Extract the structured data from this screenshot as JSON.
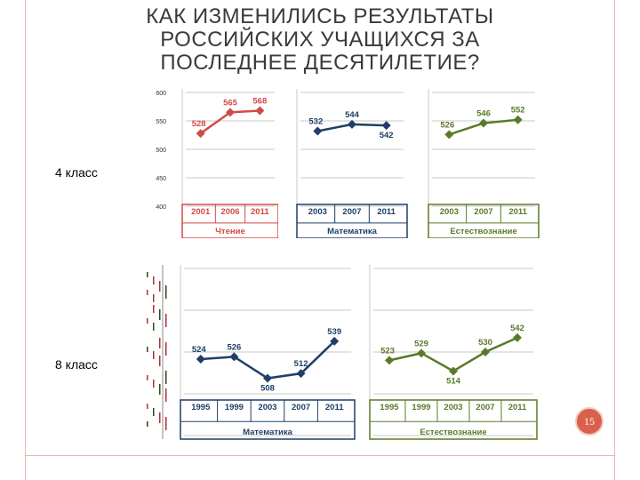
{
  "title": "КАК ИЗМЕНИЛИСЬ РЕЗУЛЬТАТЫ\nРОССИЙСКИХ УЧАЩИХСЯ ЗА\nПОСЛЕДНЕЕ ДЕСЯТИЛЕТИЕ?",
  "row_labels": [
    "4 класс",
    "8 класс"
  ],
  "slide_number": "15",
  "colors": {
    "reading": "#d24a45",
    "math": "#1f3f66",
    "science": "#5a7a2a",
    "frame": "#e6b8b0",
    "badge": "#d9604a"
  },
  "chart_data": [
    {
      "type": "line",
      "group": "4 класс",
      "subject": "Чтение",
      "x": [
        "2001",
        "2006",
        "2011"
      ],
      "values": [
        528,
        565,
        568
      ],
      "y_ticks": [
        "600",
        "550",
        "500",
        "450",
        "400"
      ],
      "ylim": [
        400,
        600
      ],
      "color": "#d24a45"
    },
    {
      "type": "line",
      "group": "4 класс",
      "subject": "Математика",
      "x": [
        "2003",
        "2007",
        "2011"
      ],
      "values": [
        532,
        544,
        542
      ],
      "ylim": [
        400,
        600
      ],
      "color": "#1f3f66"
    },
    {
      "type": "line",
      "group": "4 класс",
      "subject": "Естествознание",
      "x": [
        "2003",
        "2007",
        "2011"
      ],
      "values": [
        526,
        546,
        552
      ],
      "ylim": [
        400,
        600
      ],
      "color": "#5a7a2a"
    },
    {
      "type": "line",
      "group": "8 класс",
      "subject": "Математика",
      "x": [
        "1995",
        "1999",
        "2003",
        "2007",
        "2011"
      ],
      "values": [
        524,
        526,
        508,
        512,
        539
      ],
      "ylim": [
        460,
        600
      ],
      "color": "#1f3f66"
    },
    {
      "type": "line",
      "group": "8 класс",
      "subject": "Естествознание",
      "x": [
        "1995",
        "1999",
        "2003",
        "2007",
        "2011"
      ],
      "values": [
        523,
        529,
        514,
        530,
        542
      ],
      "ylim": [
        460,
        600
      ],
      "color": "#5a7a2a"
    }
  ]
}
